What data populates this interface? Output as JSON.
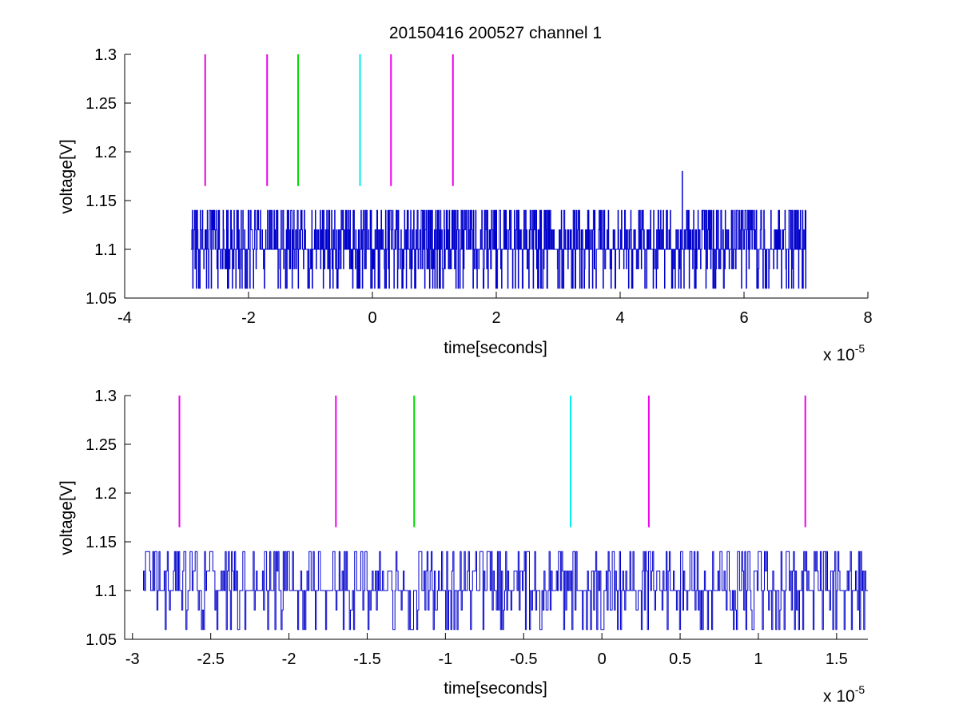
{
  "chart_data": [
    {
      "type": "line",
      "title": "20150416 200527 channel 1",
      "xlabel": "time[seconds]",
      "ylabel": "voltage[V]",
      "x_exponent_label": "x 10",
      "x_exponent": "-5",
      "xlim": [
        -4,
        8
      ],
      "ylim": [
        1.05,
        1.3
      ],
      "xticks": [
        -4,
        -2,
        0,
        2,
        4,
        6,
        8
      ],
      "xtick_labels": [
        "-4",
        "-2",
        "0",
        "2",
        "4",
        "6",
        "8"
      ],
      "yticks": [
        1.05,
        1.1,
        1.15,
        1.2,
        1.25,
        1.3
      ],
      "ytick_labels": [
        "1.05",
        "1.1",
        "1.15",
        "1.2",
        "1.25",
        "1.3"
      ],
      "grid": false,
      "box": "left-bottom",
      "signal": {
        "color": "#0000cc",
        "x_range": [
          -2.93,
          7.0
        ],
        "levels": [
          1.06,
          1.08,
          1.1,
          1.12,
          1.14
        ],
        "spike": {
          "x": 5.0,
          "y": 1.18
        }
      },
      "markers": [
        {
          "x": -2.7,
          "y_from": 1.165,
          "y_to": 1.3,
          "color": "#ee00ee"
        },
        {
          "x": -1.7,
          "y_from": 1.165,
          "y_to": 1.3,
          "color": "#ee00ee"
        },
        {
          "x": -1.2,
          "y_from": 1.165,
          "y_to": 1.3,
          "color": "#00dd00"
        },
        {
          "x": -0.2,
          "y_from": 1.165,
          "y_to": 1.3,
          "color": "#00eeee"
        },
        {
          "x": 0.3,
          "y_from": 1.165,
          "y_to": 1.3,
          "color": "#ee00ee"
        },
        {
          "x": 1.3,
          "y_from": 1.165,
          "y_to": 1.3,
          "color": "#ee00ee"
        }
      ]
    },
    {
      "type": "line",
      "xlabel": "time[seconds]",
      "ylabel": "voltage[V]",
      "x_exponent_label": "x 10",
      "x_exponent": "-5",
      "xlim": [
        -3.05,
        1.7
      ],
      "ylim": [
        1.05,
        1.3
      ],
      "xticks": [
        -3,
        -2.5,
        -2,
        -1.5,
        -1,
        -0.5,
        0,
        0.5,
        1,
        1.5
      ],
      "xtick_labels": [
        "-3",
        "-2.5",
        "-2",
        "-1.5",
        "-1",
        "-0.5",
        "0",
        "0.5",
        "1",
        "1.5"
      ],
      "yticks": [
        1.05,
        1.1,
        1.15,
        1.2,
        1.25,
        1.3
      ],
      "ytick_labels": [
        "1.05",
        "1.1",
        "1.15",
        "1.2",
        "1.25",
        "1.3"
      ],
      "grid": false,
      "box": "left-bottom",
      "signal": {
        "color": "#0000cc",
        "x_range": [
          -2.93,
          1.7
        ],
        "levels": [
          1.06,
          1.08,
          1.1,
          1.12,
          1.14
        ]
      },
      "markers": [
        {
          "x": -2.7,
          "y_from": 1.165,
          "y_to": 1.3,
          "color": "#ee00ee"
        },
        {
          "x": -1.7,
          "y_from": 1.165,
          "y_to": 1.3,
          "color": "#ee00ee"
        },
        {
          "x": -1.2,
          "y_from": 1.165,
          "y_to": 1.3,
          "color": "#00dd00"
        },
        {
          "x": -0.2,
          "y_from": 1.165,
          "y_to": 1.3,
          "color": "#00eeee"
        },
        {
          "x": 0.3,
          "y_from": 1.165,
          "y_to": 1.3,
          "color": "#ee00ee"
        },
        {
          "x": 1.3,
          "y_from": 1.165,
          "y_to": 1.3,
          "color": "#ee00ee"
        }
      ]
    }
  ]
}
